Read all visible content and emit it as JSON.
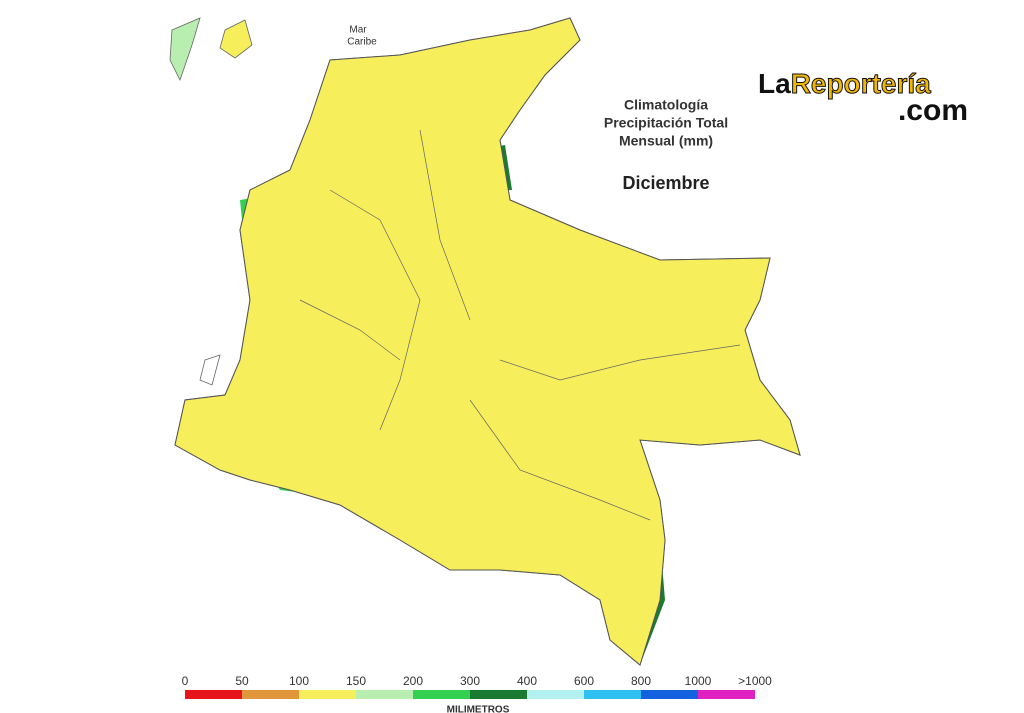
{
  "map": {
    "sea_label": [
      "Mar",
      "Caribe"
    ],
    "title": [
      "Climatología",
      "Precipitación Total",
      "Mensual (mm)"
    ],
    "month": "Diciembre",
    "legend": {
      "ticks": [
        0,
        50,
        100,
        150,
        200,
        300,
        400,
        600,
        800,
        1000,
        ">1000"
      ],
      "colors": [
        "#e8141c",
        "#e0963a",
        "#f6ee5a",
        "#b8eeb0",
        "#34d052",
        "#1b7a32",
        "#b4f0f0",
        "#2ec0f0",
        "#1462e0",
        "#e020c0"
      ],
      "unit": "MILIMETROS"
    }
  },
  "logo": {
    "first": "La",
    "second": "Reportería",
    "third": ".com"
  }
}
